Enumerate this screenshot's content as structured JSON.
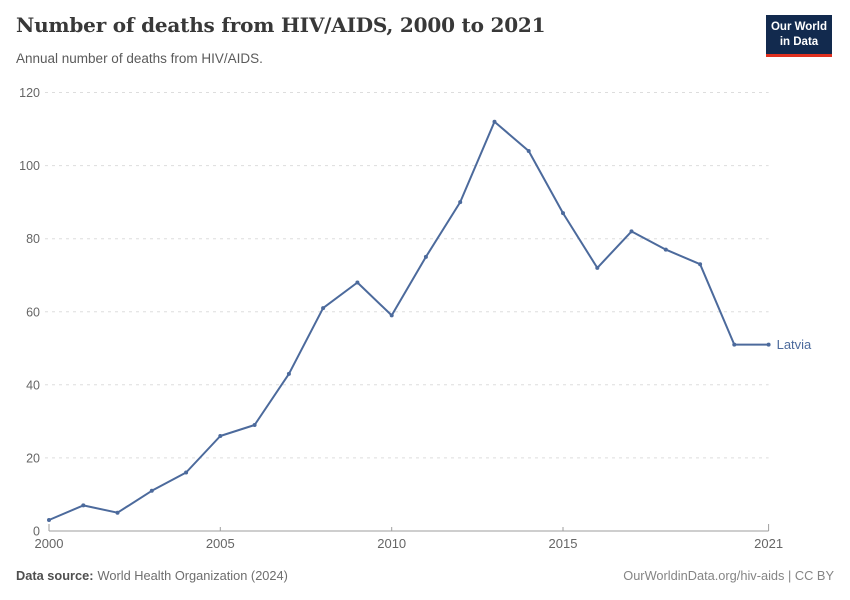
{
  "header": {
    "title": "Number of deaths from HIV/AIDS, 2000 to 2021",
    "subtitle": "Annual number of deaths from HIV/AIDS.",
    "logo": {
      "line1": "Our World",
      "line2": "in Data"
    }
  },
  "chart_data": {
    "type": "line",
    "title": "Number of deaths from HIV/AIDS, 2000 to 2021",
    "x": [
      2000,
      2001,
      2002,
      2003,
      2004,
      2005,
      2006,
      2007,
      2008,
      2009,
      2010,
      2011,
      2012,
      2013,
      2014,
      2015,
      2016,
      2017,
      2018,
      2019,
      2020,
      2021
    ],
    "series": [
      {
        "name": "Latvia",
        "color": "#4C6A9C",
        "values": [
          3,
          7,
          5,
          11,
          16,
          26,
          29,
          43,
          61,
          68,
          59,
          75,
          90,
          112,
          104,
          87,
          72,
          82,
          77,
          73,
          51,
          51
        ]
      }
    ],
    "xlabel": "",
    "ylabel": "",
    "ylim": [
      0,
      120
    ],
    "yticks": [
      0,
      20,
      40,
      60,
      80,
      100,
      120
    ],
    "xticks": [
      2000,
      2005,
      2010,
      2015,
      2021
    ],
    "grid": "horizontal-dashed",
    "legend_position": "end-of-line"
  },
  "footer": {
    "source_label": "Data source:",
    "source_value": "World Health Organization (2024)",
    "credit": "OurWorldinData.org/hiv-aids | CC BY"
  },
  "colors": {
    "accent_blue": "#4C6A9C",
    "logo_navy": "#122A4E",
    "logo_red": "#E0301F",
    "grid": "#DDDDDD",
    "axis": "#9E9E9E",
    "tick_label": "#666666"
  }
}
